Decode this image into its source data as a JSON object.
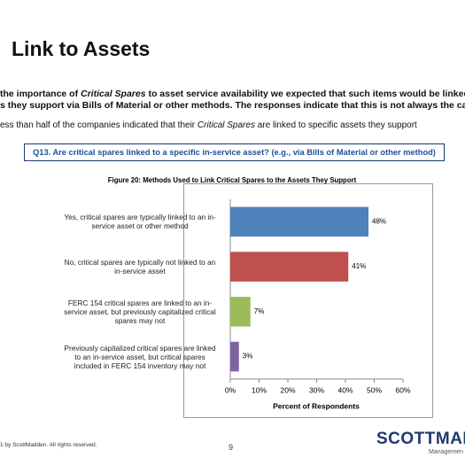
{
  "header": {
    "title": "Link to Assets"
  },
  "intro": {
    "line1": [
      "the importance of ",
      "Critical Spares",
      " to asset service availability we expected that such items would be linked t"
    ],
    "line2": "s they support via Bills of Material or other methods.  The responses indicate that this is not always the case",
    "bullet": [
      "ess than half of the companies indicated that their ",
      "Critical Spares",
      " are linked to specific assets they support"
    ]
  },
  "question": "Q13.  Are critical spares linked to a specific in-service asset? (e.g., via Bills of Material or other method)",
  "chart_data": {
    "type": "hbar",
    "title": "Figure 20:  Methods Used to Link Critical Spares to the Assets They Support",
    "categories": [
      "Yes, critical spares are typically linked to an in-service asset or other method",
      "No, critical spares are typically not linked to an in-service asset",
      "FERC 154 critical spares are linked to an in-service asset, but previously capitalized critical spares may not",
      "Previously capitalized critical spares are linked to an in-service asset, but critical spares included in FERC 154 inventory may not"
    ],
    "values": [
      48,
      41,
      7,
      3
    ],
    "value_labels": [
      "48%",
      "41%",
      "7%",
      "3%"
    ],
    "colors": [
      "#4f81bd",
      "#c0504d",
      "#9bbb59",
      "#8064a2"
    ],
    "xlabel": "Percent of Respondents",
    "xlim": [
      0,
      60
    ],
    "xticks": [
      {
        "value": 0,
        "label": "0%"
      },
      {
        "value": 10,
        "label": "10%"
      },
      {
        "value": 20,
        "label": "20%"
      },
      {
        "value": 30,
        "label": "30%"
      },
      {
        "value": 40,
        "label": "40%"
      },
      {
        "value": 50,
        "label": "50%"
      },
      {
        "value": 60,
        "label": "60%"
      }
    ]
  },
  "footer": {
    "copyright": "1 by ScottMadden.  All rights reserved.",
    "page": "9",
    "logo": "SCOTTMAD",
    "logo_sub": "Managemen"
  }
}
